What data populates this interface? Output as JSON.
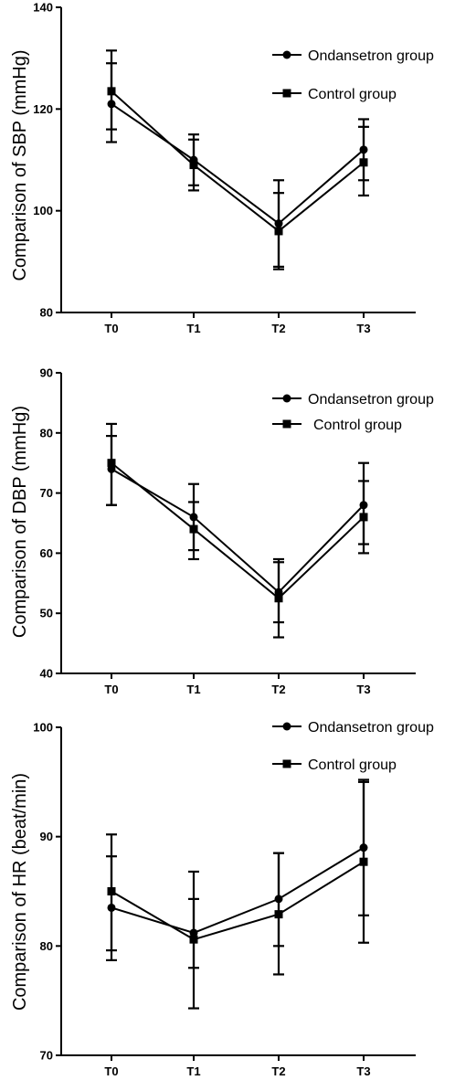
{
  "colors": {
    "line": "#000000",
    "background": "#ffffff"
  },
  "chart_data": [
    {
      "type": "line",
      "title": "",
      "xlabel": "",
      "ylabel": "Comparison of SBP (mmHg)",
      "categories": [
        "T0",
        "T1",
        "T2",
        "T3"
      ],
      "ylim": [
        80,
        140
      ],
      "yticks": [
        "80",
        "100",
        "120",
        "140"
      ],
      "legend_position": "top-right",
      "grid": false,
      "series": [
        {
          "name": "Ondansetron group",
          "marker": "circle",
          "values": [
            121.0,
            110.0,
            97.5,
            112.0
          ],
          "err_low": [
            113.5,
            105.0,
            89.0,
            106.0
          ],
          "err_high": [
            129.0,
            115.0,
            106.0,
            118.0
          ]
        },
        {
          "name": "Control group",
          "marker": "square",
          "values": [
            123.5,
            109.0,
            96.0,
            109.5
          ],
          "err_low": [
            116.0,
            104.0,
            88.5,
            103.0
          ],
          "err_high": [
            131.5,
            114.0,
            103.5,
            116.5
          ]
        }
      ]
    },
    {
      "type": "line",
      "title": "",
      "xlabel": "",
      "ylabel": "Comparison of DBP (mmHg)",
      "categories": [
        "T0",
        "T1",
        "T2",
        "T3"
      ],
      "ylim": [
        40,
        90
      ],
      "yticks": [
        "40",
        "50",
        "60",
        "70",
        "80",
        "90"
      ],
      "legend_position": "top-right",
      "grid": false,
      "series": [
        {
          "name": "Ondansetron group",
          "marker": "circle",
          "values": [
            74.0,
            66.0,
            53.5,
            68.0
          ],
          "err_low": [
            68.0,
            60.5,
            48.5,
            61.5
          ],
          "err_high": [
            79.5,
            71.5,
            59.0,
            75.0
          ]
        },
        {
          "name": "Control group",
          "marker": "square",
          "values": [
            75.0,
            64.0,
            52.5,
            66.0
          ],
          "err_low": [
            68.0,
            59.0,
            46.0,
            60.0
          ],
          "err_high": [
            81.5,
            68.5,
            58.5,
            72.0
          ]
        }
      ]
    },
    {
      "type": "line",
      "title": "",
      "xlabel": "",
      "ylabel": "Comparison of HR (beat/min)",
      "categories": [
        "T0",
        "T1",
        "T2",
        "T3"
      ],
      "ylim": [
        70,
        100
      ],
      "yticks": [
        "70",
        "80",
        "90",
        "100"
      ],
      "legend_position": "top-right",
      "grid": false,
      "series": [
        {
          "name": "Ondansetron group",
          "marker": "circle",
          "values": [
            83.5,
            81.2,
            84.3,
            89.0
          ],
          "err_low": [
            78.7,
            78.0,
            80.0,
            82.8
          ],
          "err_high": [
            88.2,
            84.3,
            88.5,
            95.0
          ]
        },
        {
          "name": "Control group",
          "marker": "square",
          "values": [
            85.0,
            80.6,
            82.9,
            87.7
          ],
          "err_low": [
            79.6,
            74.3,
            77.4,
            80.3
          ],
          "err_high": [
            90.2,
            86.8,
            88.5,
            95.2
          ]
        }
      ]
    }
  ]
}
